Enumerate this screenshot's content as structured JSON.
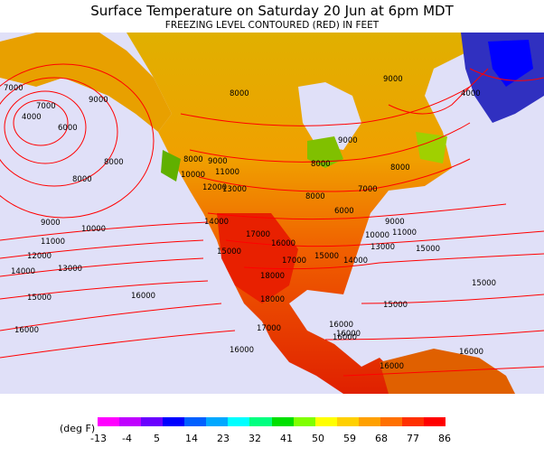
{
  "header": {
    "title": "Surface Temperature on Saturday 20 Jun at 6pm MDT",
    "subtitle": "FREEZING LEVEL CONTOURED (RED) IN FEET"
  },
  "legend": {
    "unit": "(deg F)",
    "ticks": [
      "-13",
      "-4",
      "5",
      "14",
      "23",
      "32",
      "41",
      "50",
      "59",
      "68",
      "77",
      "86"
    ],
    "colors": [
      "#ff00ff",
      "#c000ff",
      "#6a00ff",
      "#0000ff",
      "#0060ff",
      "#00a8ff",
      "#00ffff",
      "#00ff80",
      "#00e000",
      "#80ff00",
      "#ffff00",
      "#ffd000",
      "#ffa000",
      "#ff7000",
      "#ff3000",
      "#ff0000"
    ]
  },
  "map": {
    "ocean_color": "#e0e0f8",
    "contour_color": "#ff0000",
    "contour_labels": [
      "7000",
      "4000",
      "7000",
      "6000",
      "9000",
      "8000",
      "8000",
      "9000",
      "10000",
      "11000",
      "12000",
      "14000",
      "13000",
      "15000",
      "16000",
      "16000",
      "16000",
      "8000",
      "9000",
      "10000",
      "11000",
      "12000",
      "13000",
      "14000",
      "15000",
      "17000",
      "16000",
      "17000",
      "18000",
      "18000",
      "17000",
      "16000",
      "8000",
      "9000",
      "9000",
      "4000",
      "8000",
      "6000",
      "8000",
      "7000",
      "8000",
      "9000",
      "10000",
      "11000",
      "15000",
      "15000",
      "14000",
      "13000",
      "15000",
      "15000",
      "16000",
      "16000",
      "16000",
      "16000"
    ]
  }
}
